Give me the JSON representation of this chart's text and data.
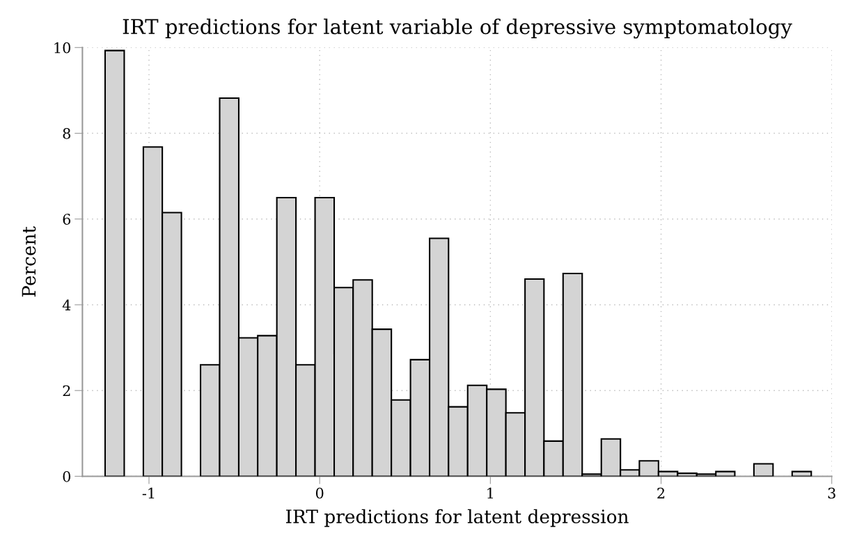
{
  "chart_data": {
    "type": "histogram",
    "title": "IRT predictions for latent variable of depressive symptomatology",
    "xlabel": "IRT predictions for latent depression",
    "ylabel": "Percent",
    "bins": [
      -1.257,
      -1.145,
      -1.033,
      -0.922,
      -0.81,
      -0.698,
      -0.586,
      -0.474,
      -0.363,
      -0.251,
      -0.139,
      -0.027,
      0.085,
      0.196,
      0.308,
      0.42,
      0.532,
      0.644,
      0.755,
      0.867,
      0.979,
      1.091,
      1.203,
      1.314,
      1.426,
      1.538,
      1.65,
      1.762,
      1.873,
      1.985,
      2.097,
      2.209,
      2.321,
      2.432,
      2.544,
      2.656,
      2.768,
      2.88
    ],
    "values": [
      9.93,
      null,
      7.68,
      6.15,
      null,
      2.6,
      8.82,
      3.23,
      3.28,
      6.5,
      2.6,
      6.5,
      4.4,
      4.58,
      3.43,
      1.78,
      2.72,
      5.55,
      1.62,
      2.12,
      2.03,
      1.48,
      4.6,
      0.82,
      4.73,
      0.05,
      0.87,
      0.15,
      0.36,
      0.11,
      0.07,
      0.05,
      0.11,
      null,
      0.29,
      null,
      0.11
    ],
    "color": "#d4d4d4",
    "xlim": [
      -1.39,
      3.0
    ],
    "ylim": [
      0,
      10
    ],
    "xticks": [
      -1,
      0,
      1,
      2,
      3
    ],
    "yticks": [
      0,
      2,
      4,
      6,
      8,
      10
    ],
    "grid": true
  }
}
